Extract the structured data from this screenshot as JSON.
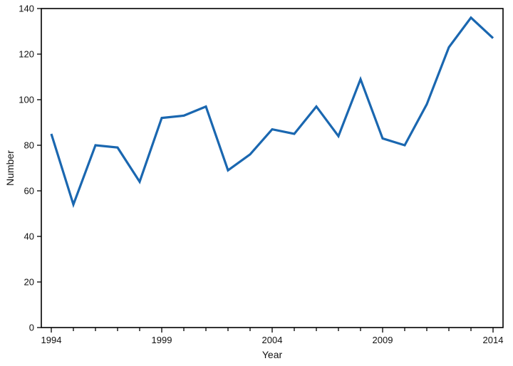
{
  "figure": {
    "background": "#ffffff"
  },
  "chart_data": {
    "type": "line",
    "title": "",
    "xlabel": "Year",
    "ylabel": "Number",
    "x": [
      1994,
      1995,
      1996,
      1997,
      1998,
      1999,
      2000,
      2001,
      2002,
      2003,
      2004,
      2005,
      2006,
      2007,
      2008,
      2009,
      2010,
      2011,
      2012,
      2013,
      2014
    ],
    "values": [
      85,
      54,
      80,
      79,
      64,
      92,
      93,
      97,
      69,
      76,
      87,
      85,
      97,
      84,
      109,
      83,
      80,
      98,
      123,
      136,
      127
    ],
    "xlim": [
      1994,
      2014
    ],
    "ylim": [
      0,
      140
    ],
    "ytick_step": 20,
    "ytick_labels": [
      "0",
      "20",
      "40",
      "60",
      "80",
      "100",
      "120",
      "140"
    ],
    "xtick_labeled_years": [
      1994,
      1999,
      2004,
      2009,
      2014
    ],
    "grid": false,
    "legend": "none",
    "line_color": "#1a67b0",
    "axis_color": "#000000",
    "text_color": "#111111"
  }
}
